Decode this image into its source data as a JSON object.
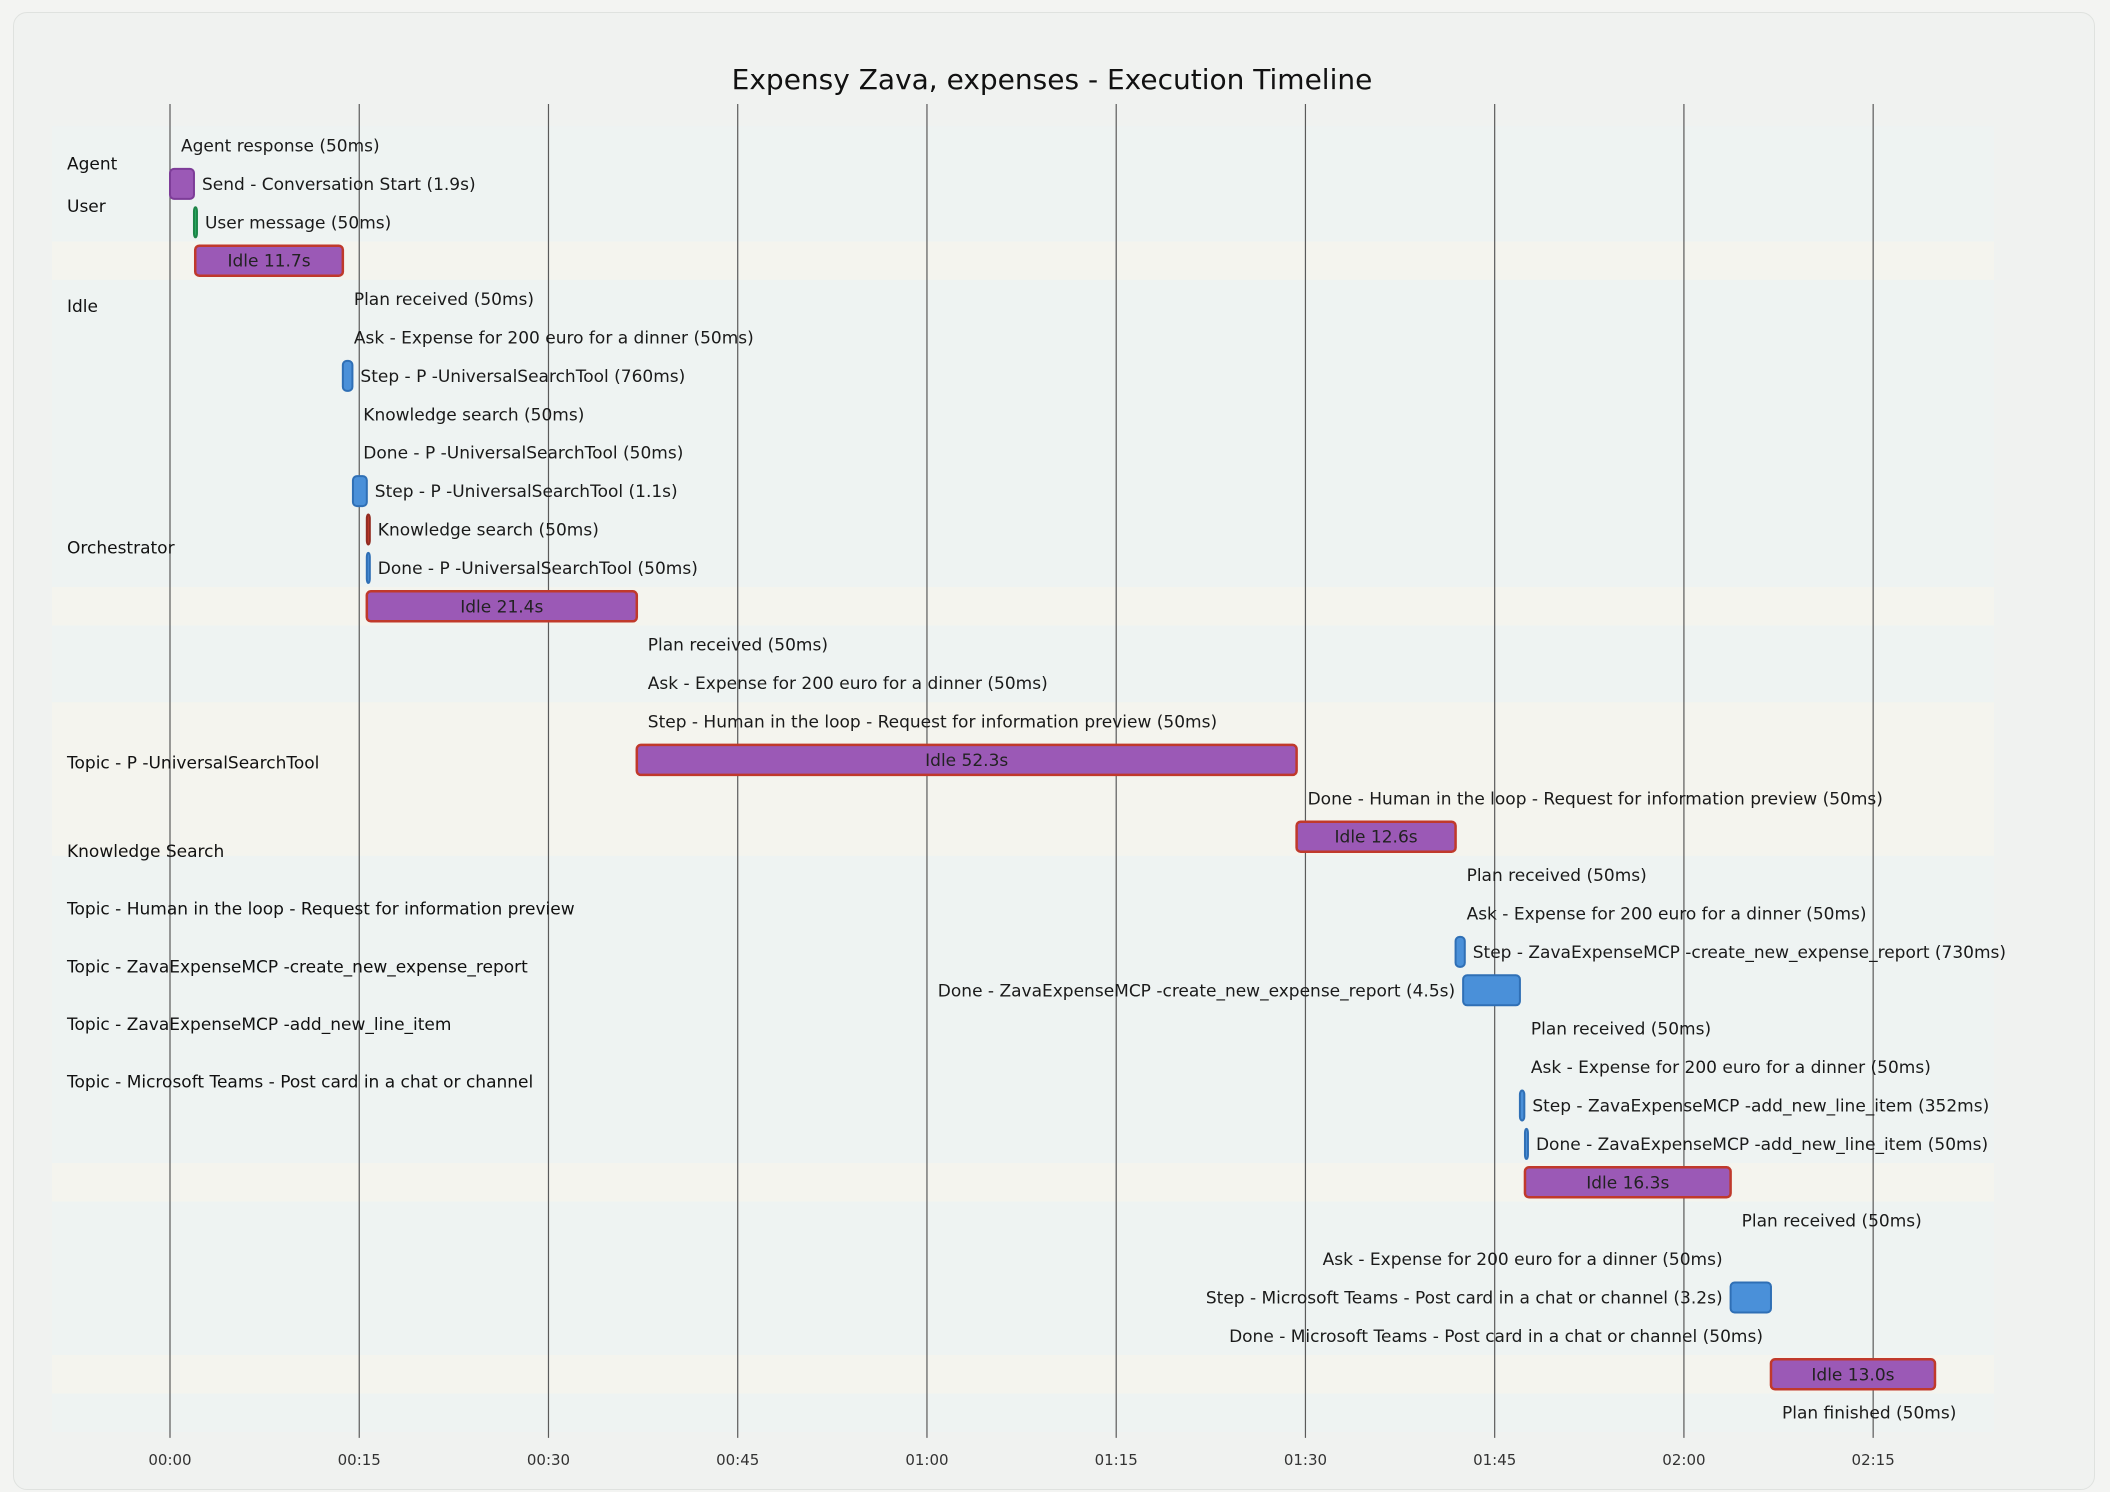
{
  "chart_data": {
    "type": "gantt",
    "title": "Expensy Zava, expenses - Execution Timeline",
    "x_unit": "seconds",
    "x_ticks": [
      "00:00",
      "00:15",
      "00:30",
      "00:45",
      "01:00",
      "01:15",
      "01:30",
      "01:45",
      "02:00",
      "02:15"
    ],
    "x_tick_values": [
      0,
      15,
      30,
      45,
      60,
      75,
      90,
      105,
      120,
      135
    ],
    "sections": [
      "Agent",
      "User",
      "Idle",
      "Orchestrator",
      "Topic - P -UniversalSearchTool",
      "Knowledge Search",
      "Topic - Human in the loop - Request for information preview",
      "Topic - ZavaExpenseMCP -create_new_expense_report",
      "Topic - ZavaExpenseMCP -add_new_line_item",
      "Topic - Microsoft Teams - Post card in a chat or channel"
    ],
    "colors": {
      "agent": "#9b59b6",
      "user": "#27ae60",
      "step": "#4a90d9",
      "step_border": "#2f6fb5",
      "idle": "#9b59b6",
      "idle_border": "#c0392b",
      "knowledge": "#c0392b",
      "band_alt": "#f4f4ee",
      "band": "#eef3f2"
    },
    "tasks": [
      {
        "label": "Agent response (50ms)",
        "start": 0.0,
        "duration": 0.05,
        "kind": "agent",
        "band": "band"
      },
      {
        "label": "Send - Conversation Start (1.9s)",
        "start": 0.0,
        "duration": 1.9,
        "kind": "agent",
        "band": "band"
      },
      {
        "label": "User message (50ms)",
        "start": 1.9,
        "duration": 0.05,
        "kind": "user",
        "band": "band"
      },
      {
        "label": "Idle 11.7s",
        "start": 2.0,
        "duration": 11.7,
        "kind": "idle",
        "band": "band_alt"
      },
      {
        "label": "Plan received (50ms)",
        "start": 13.7,
        "duration": 0.05,
        "kind": "step",
        "band": "band"
      },
      {
        "label": "Ask - Expense for 200 euro for a dinner (50ms)",
        "start": 13.7,
        "duration": 0.05,
        "kind": "step",
        "band": "band"
      },
      {
        "label": "Step - P -UniversalSearchTool (760ms)",
        "start": 13.7,
        "duration": 0.76,
        "kind": "step",
        "band": "band"
      },
      {
        "label": "Knowledge search (50ms)",
        "start": 14.45,
        "duration": 0.05,
        "kind": "knowledge",
        "band": "band"
      },
      {
        "label": "Done - P -UniversalSearchTool (50ms)",
        "start": 14.45,
        "duration": 0.05,
        "kind": "step",
        "band": "band"
      },
      {
        "label": "Step - P -UniversalSearchTool (1.1s)",
        "start": 14.5,
        "duration": 1.1,
        "kind": "step",
        "band": "band"
      },
      {
        "label": "Knowledge search (50ms)",
        "start": 15.6,
        "duration": 0.05,
        "kind": "knowledge",
        "band": "band"
      },
      {
        "label": "Done - P -UniversalSearchTool (50ms)",
        "start": 15.6,
        "duration": 0.05,
        "kind": "step",
        "band": "band"
      },
      {
        "label": "Idle 21.4s",
        "start": 15.6,
        "duration": 21.4,
        "kind": "idle",
        "band": "band_alt"
      },
      {
        "label": "Plan received (50ms)",
        "start": 37.0,
        "duration": 0.05,
        "kind": "step",
        "band": "band"
      },
      {
        "label": "Ask - Expense for 200 euro for a dinner (50ms)",
        "start": 37.0,
        "duration": 0.05,
        "kind": "step",
        "band": "band"
      },
      {
        "label": "Step - Human in the loop - Request for information preview (50ms)",
        "start": 37.0,
        "duration": 0.05,
        "kind": "step",
        "band": "band_alt"
      },
      {
        "label": "Idle 52.3s",
        "start": 37.0,
        "duration": 52.3,
        "kind": "idle",
        "band": "band_alt"
      },
      {
        "label": "Done - Human in the loop - Request for information preview (50ms)",
        "start": 89.3,
        "duration": 0.05,
        "kind": "step",
        "band": "band_alt"
      },
      {
        "label": "Idle 12.6s",
        "start": 89.3,
        "duration": 12.6,
        "kind": "idle",
        "band": "band_alt"
      },
      {
        "label": "Plan received (50ms)",
        "start": 101.9,
        "duration": 0.05,
        "kind": "step",
        "band": "band"
      },
      {
        "label": "Ask - Expense for 200 euro for a dinner (50ms)",
        "start": 101.9,
        "duration": 0.05,
        "kind": "step",
        "band": "band"
      },
      {
        "label": "Step - ZavaExpenseMCP -create_new_expense_report (730ms)",
        "start": 101.9,
        "duration": 0.73,
        "kind": "step",
        "band": "band"
      },
      {
        "label": "Done - ZavaExpenseMCP -create_new_expense_report (4.5s)",
        "start": 102.5,
        "duration": 4.5,
        "kind": "step",
        "band": "band",
        "label_left": true
      },
      {
        "label": "Plan received (50ms)",
        "start": 107.0,
        "duration": 0.05,
        "kind": "step",
        "band": "band"
      },
      {
        "label": "Ask - Expense for 200 euro for a dinner (50ms)",
        "start": 107.0,
        "duration": 0.05,
        "kind": "step",
        "band": "band"
      },
      {
        "label": "Step - ZavaExpenseMCP -add_new_line_item (352ms)",
        "start": 107.0,
        "duration": 0.35,
        "kind": "step",
        "band": "band"
      },
      {
        "label": "Done - ZavaExpenseMCP -add_new_line_item (50ms)",
        "start": 107.4,
        "duration": 0.05,
        "kind": "step",
        "band": "band"
      },
      {
        "label": "Idle 16.3s",
        "start": 107.4,
        "duration": 16.3,
        "kind": "idle",
        "band": "band_alt"
      },
      {
        "label": "Plan received (50ms)",
        "start": 123.7,
        "duration": 0.05,
        "kind": "step",
        "band": "band"
      },
      {
        "label": "Ask - Expense for 200 euro for a dinner (50ms)",
        "start": 123.7,
        "duration": 0.05,
        "kind": "step",
        "band": "band",
        "label_left": true
      },
      {
        "label": "Step - Microsoft Teams - Post card in a chat or channel (3.2s)",
        "start": 123.7,
        "duration": 3.2,
        "kind": "step",
        "band": "band",
        "label_left": true
      },
      {
        "label": "Done - Microsoft Teams - Post card in a chat or channel (50ms)",
        "start": 126.9,
        "duration": 0.05,
        "kind": "step",
        "band": "band",
        "label_left": true
      },
      {
        "label": "Idle 13.0s",
        "start": 126.9,
        "duration": 13.0,
        "kind": "idle",
        "band": "band_alt"
      },
      {
        "label": "Plan finished (50ms)",
        "start": 126.9,
        "duration": 0.05,
        "kind": "step",
        "band": "band"
      }
    ]
  }
}
